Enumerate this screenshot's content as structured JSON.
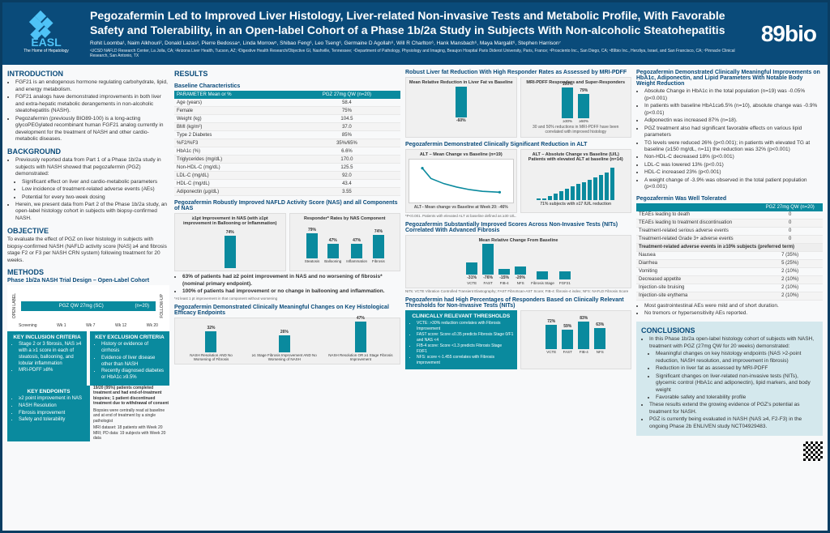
{
  "header": {
    "easl_logo": "EASL",
    "easl_tag": "The Home of Hepatology",
    "title": "Pegozafermin Led to Improved Liver Histology, Liver-related Non-invasive Tests and Metabolic Profile, With Favorable Safety and Tolerability, in an Open-label Cohort of a Phase 1b/2a Study in Subjects With Non-alcoholic Steatohepatitis",
    "authors": "Rohit Loomba¹, Naim Alkhouri², Donald Lazas³, Pierre Bedossa⁴, Linda Morrow⁵, Shibao Feng⁶, Leo Tseng⁶, Germaine D Agollah⁶, Will R Charlton⁶, Hank Mansbach⁶, Maya Margalit⁶, Stephen Harrison⁷",
    "affiliations": "¹UCSD NAFLD Research Center, La Jolla, CA; ²Arizona Liver Health, Tucson, AZ; ³Digestive Health Research/Objective GI, Nashville, Tennessee; ⁴Department of Pathology, Physiology and Imaging, Beaujon Hospital Paris Diderot University, Paris, France; ⁵Prosciento Inc., San Diego, CA; ⁶89bio Inc., Herzliya, Israel, and San Francisco, CA; ⁷Pinnacle Clinical Research, San Antonio, TX",
    "sponsor": "89bio"
  },
  "intro": {
    "h": "INTRODUCTION",
    "items": [
      "FGF21 is an endogenous hormone regulating carbohydrate, lipid, and energy metabolism.",
      "FGF21 analogs have demonstrated improvements in both liver and extra-hepatic metabolic derangements in non-alcoholic steatohepatitis (NASH).",
      "Pegozafermin (previously BIO89-100) is a long-acting glycoPEGylated recombinant human FGF21 analog currently in development for the treatment of NASH and other cardio-metabolic diseases."
    ]
  },
  "background": {
    "h": "BACKGROUND",
    "lead": "Previously reported data from Part 1 of a Phase 1b/2a study in subjects with NASH showed that pegozafermin (PGZ) demonstrated:",
    "sub": [
      "Significant effect on liver and cardio-metabolic parameters",
      "Low incidence of treatment-related adverse events (AEs)",
      "Potential for every two-week dosing"
    ],
    "trail": "Herein, we present data from Part 2 of the Phase 1b/2a study, an open-label histology cohort in subjects with biopsy-confirmed NASH."
  },
  "objective": {
    "h": "OBJECTIVE",
    "text": "To evaluate the effect of PGZ on liver histology in subjects with biopsy-confirmed NASH (NAFLD activity score [NAS] ≥4 and fibrosis stage F2 or F3 per NASH CRN system) following treatment for 20 weeks."
  },
  "methods": {
    "h": "METHODS",
    "subtitle": "Phase 1b/2a NASH Trial Design – Open-Label Cohort",
    "arm": "PGZ QW 27mg (SC)",
    "n": "(n=20)",
    "timepoints": [
      "Screening",
      "Wk 1",
      "Wk 7",
      "Wk 12",
      "Wk 20"
    ],
    "inc_h": "KEY INCLUSION CRITERIA",
    "inc": [
      "Stage 2 or 3 fibrosis, NAS ≥4 with a ≥1 score in each of steatosis, ballooning, and lobular inflammation",
      "MRI-PDFF ≥8%"
    ],
    "exc_h": "KEY EXCLUSION CRITERIA",
    "exc": [
      "History or evidence of cirrhosis",
      "Evidence of liver disease other than NASH",
      "Recently diagnosed diabetes or HbA1c ≥9.5%"
    ],
    "ep_h": "KEY ENDPOINTS",
    "ep": [
      "≥2 point improvement in NAS",
      "NASH Resolution",
      "Fibrosis improvement",
      "Safety and tolerability"
    ],
    "comp_text": "19/20 (95%) patients completed treatment and had end-of-treatment biopsies; 1 patient discontinued treatment due to withdrawal of consent",
    "biopsy_text": "Biopsies were centrally read at baseline and at end of treatment by a single pathologist",
    "mri_text": "MRI dataset: 18 patients with Week 20 MRI; PD data: 19 subjects with Week 20 data"
  },
  "results": {
    "h": "RESULTS"
  },
  "baseline": {
    "h": "Baseline Characteristics",
    "col": "PGZ 27mg QW (n=20)",
    "param": "PARAMETER Mean or %",
    "rows": [
      [
        "Age (years)",
        "58.4"
      ],
      [
        "Female",
        "75%"
      ],
      [
        "Weight (kg)",
        "104.5"
      ],
      [
        "BMI (kg/m²)",
        "37.0"
      ],
      [
        "Type 2 Diabetes",
        "85%"
      ],
      [
        "%F2/%F3",
        "35%/65%"
      ],
      [
        "HbA1c (%)",
        "6.6%"
      ],
      [
        "Triglycerides (mg/dL)",
        "170.0"
      ],
      [
        "Non-HDL-C (mg/dL)",
        "125.5"
      ],
      [
        "LDL-C (mg/dL)",
        "92.0"
      ],
      [
        "HDL-C (mg/dL)",
        "43.4"
      ],
      [
        "Adiponectin (μg/dL)",
        "3.55"
      ]
    ]
  },
  "nas": {
    "h": "Pegozafermin Robustly Improved NAFLD Activity Score (NAS) and all Components of NAS",
    "chart1_title": "≥1pt Improvement in NAS (with ≥1pt improvement in Ballooning or Inflammation)",
    "chart1_val": "74%",
    "chart2_title": "Responder* Rates by NAS Component",
    "chart2_cats": [
      "Steatosis",
      "Ballooning",
      "Inflammation",
      "Fibrosis"
    ],
    "chart2_vals": [
      79,
      47,
      47,
      74
    ],
    "note1": "63% of patients had ≥2 point improvement in NAS and no worsening of fibrosis* (nominal primary endpoint).",
    "note2": "100% of patients had improvement or no change in ballooning and inflammation.",
    "footnote": "*At least 1 pt improvement in that component without worsening"
  },
  "histendpoints": {
    "h": "Pegozafermin Demonstrated Clinically Meaningful Changes on Key Histological Efficacy Endpoints",
    "cats": [
      "NASH Resolution AND No Worsening of Fibrosis",
      "≥1 Stage Fibrosis Improvement AND No Worsening of NASH",
      "NASH Resolution OR ≥1 Stage Fibrosis Improvement"
    ],
    "vals": [
      32,
      26,
      47
    ],
    "labels": [
      "32%",
      "26%",
      "47%"
    ]
  },
  "pdff": {
    "h": "Robust Liver fat Reduction With High Responder Rates as Assessed by MRI-PDFF",
    "chart1_title": "Mean Relative Reduction in Liver Fat vs Baseline",
    "chart1_val": "-60%",
    "chart2_title": "MRI-PDFF Responders and Super-Responders",
    "chart2_labels": [
      "≥30%",
      "≥50%"
    ],
    "chart2_vals": [
      100,
      79
    ],
    "caption": "30 and 50% reductions in MRI-PDFF have been correlated with improved histology"
  },
  "alt": {
    "h": "Pegozafermin Demonstrated Clinically Significant Reduction in ALT",
    "chart1_title": "ALT – Mean Change vs Baseline (n=19)",
    "chart2_title": "ALT – Absolute Change vs Baseline (U/L) Patients with elevated ALT at baseline (n=14)",
    "mean_change": "ALT– Mean change vs Baseline at Week 20: -46%",
    "responder": "71% subjects with ≥17 IU/L reduction",
    "waterfall_vals": [
      5,
      -5,
      -10,
      -15,
      -20,
      -25,
      -30,
      -35,
      -40,
      -45,
      -50,
      -55,
      -60,
      -70
    ],
    "footnote": "*P<0.001. Patients with elevated ALT at baseline defined as ≥30 U/L."
  },
  "nits": {
    "h": "Pegozafermin Substantially Improved Scores Across Non-Invasive Tests (NITs) Correlated With Advanced Fibrosis",
    "title": "Mean Relative Change From Baseline",
    "cats": [
      "VCTE",
      "FAST",
      "FIB-4",
      "NFS",
      "Fibrosis Stage",
      "FGF21"
    ],
    "vals": [
      -31,
      -76,
      -15,
      -20,
      -20,
      -20
    ],
    "labels": [
      "-31%",
      "-76%",
      "-15%",
      "-20%",
      "",
      ""
    ],
    "footnote": "NITs: VCTE Vibration Controlled Transient Elastography; FAST FibroScan-AST Score; FIB-4: fibrosis-4 index; NFS: NAFLD Fibrosis Score"
  },
  "responders": {
    "h": "Pegozafermin had High Percentages of Responders Based on Clinically Relevant Thresholds for Non-Invasive Tests (NITs)",
    "thresh_h": "CLINICALLY RELEVANT THRESHOLDS",
    "thresh": [
      "VCTE: >30% reduction correlates with Fibrosis Improvement",
      "FAST score: Score ≤0.35 predicts Fibrosis Stage 0/F1 and NAS <4",
      "FIB-4 score: Score <1.3 predicts Fibrosis Stage F0/F1",
      "NFS: score <-1.455 correlates with Fibrosis improvement"
    ],
    "cats": [
      "VCTE",
      "FAST",
      "FIB-4",
      "NFS"
    ],
    "vals": [
      72,
      59,
      83,
      63
    ],
    "labels": [
      "72%",
      "59%",
      "83%",
      "63%"
    ]
  },
  "metabolic": {
    "h": "Pegozafermin Demonstrated Clinically Meaningful Improvements on HbA1c, Adiponectin, and Lipid Parameters With Notable Body Weight Reduction",
    "items": [
      "Absolute Change in HbA1c in the total population (n=19) was -0.05% (p<0.001)",
      "In patients with baseline HbA1c≥6.5% (n=10), absolute change was -0.9% (p<0.01)",
      "Adiponectin was increased 87% (n=18).",
      "PGZ treatment also had significant favorable effects on various lipid parameters",
      "TG levels were reduced 26% (p<0.001); in patients with elevated TG at baseline (≥150 mg/dL, n=11) the reduction was 32% (p<0.001)",
      "Non-HDL-C decreased 18% (p<0.001)",
      "LDL-C was lowered 13% (p<0.01)",
      "HDL-C increased 23% (p<0.001)",
      "A weight change of -3.9% was observed in the total patient population (p<0.001)"
    ]
  },
  "safety": {
    "h": "Pegozafermin Was Well Tolerated",
    "col": "PGZ 27mg QW (n=20)",
    "rows": [
      [
        "TEAEs leading to death",
        "0"
      ],
      [
        "TEAEs leading to treatment discontinuation",
        "0"
      ],
      [
        "Treatment-related serious adverse events",
        "0"
      ],
      [
        "Treatment-related Grade 3+ adverse events",
        "0"
      ]
    ],
    "subhead": "Treatment-related adverse events in ≥10% subjects (preferred term)",
    "rows2": [
      [
        "Nausea",
        "7 (35%)"
      ],
      [
        "Diarrhea",
        "5 (25%)"
      ],
      [
        "Vomiting",
        "2 (10%)"
      ],
      [
        "Decreased appetite",
        "2 (10%)"
      ],
      [
        "Injection-site bruising",
        "2 (10%)"
      ],
      [
        "Injection-site erythema",
        "2 (10%)"
      ]
    ],
    "notes": [
      "Most gastrointestinal AEs were mild and of short duration.",
      "No tremors or hypersensitivity AEs reported."
    ]
  },
  "conclusions": {
    "h": "CONCLUSIONS",
    "lead": "In this Phase 1b/2a open-label histology cohort of subjects with NASH, treatment with PGZ (27mg QW for 20 weeks) demonstrated:",
    "sub": [
      "Meaningful changes on key histology endpoints (NAS >2-point reduction, NASH resolution, and improvement in fibrosis)",
      "Reduction in liver fat as assessed by MRI-PDFF",
      "Significant changes on liver-related non-invasive tests (NITs), glycemic control (HbA1c and adiponectin), lipid markers, and body weight",
      "Favorable safety and tolerability profile"
    ],
    "trail1": "These results extend the growing evidence of PGZ's potential as treatment for NASH.",
    "trail2": "PGZ is currently being evaluated in NASH (NAS ≥4, F2-F3) in the ongoing Phase 2b ENLIVEN study NCT04929483."
  },
  "colors": {
    "teal": "#0a8a9e",
    "navy": "#0a4b7a",
    "lightteal": "#4fc3f7"
  }
}
